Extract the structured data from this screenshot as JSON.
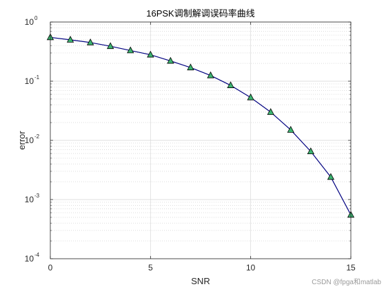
{
  "chart_data": {
    "type": "line",
    "title": "16PSK调制解调误码率曲线",
    "xlabel": "SNR",
    "ylabel": "error",
    "x_scale": "linear",
    "y_scale": "log",
    "xlim": [
      0,
      15
    ],
    "ylim": [
      0.0001,
      1
    ],
    "x_ticks": [
      "0",
      "5",
      "10",
      "15"
    ],
    "y_ticks": [
      {
        "base": "10",
        "exp": "-4"
      },
      {
        "base": "10",
        "exp": "-3"
      },
      {
        "base": "10",
        "exp": "-2"
      },
      {
        "base": "10",
        "exp": "-1"
      },
      {
        "base": "10",
        "exp": "0"
      }
    ],
    "grid": true,
    "series": [
      {
        "color": "#000080",
        "marker": "triangle",
        "marker_color": "#3cb371",
        "x": [
          0,
          1,
          2,
          3,
          4,
          5,
          6,
          7,
          8,
          9,
          10,
          11,
          12,
          13,
          14,
          15
        ],
        "values": [
          0.55,
          0.5,
          0.45,
          0.39,
          0.33,
          0.28,
          0.22,
          0.17,
          0.125,
          0.085,
          0.053,
          0.03,
          0.015,
          0.0065,
          0.0024,
          0.00055
        ]
      }
    ]
  },
  "watermark": "CSDN @fpga和matlab"
}
